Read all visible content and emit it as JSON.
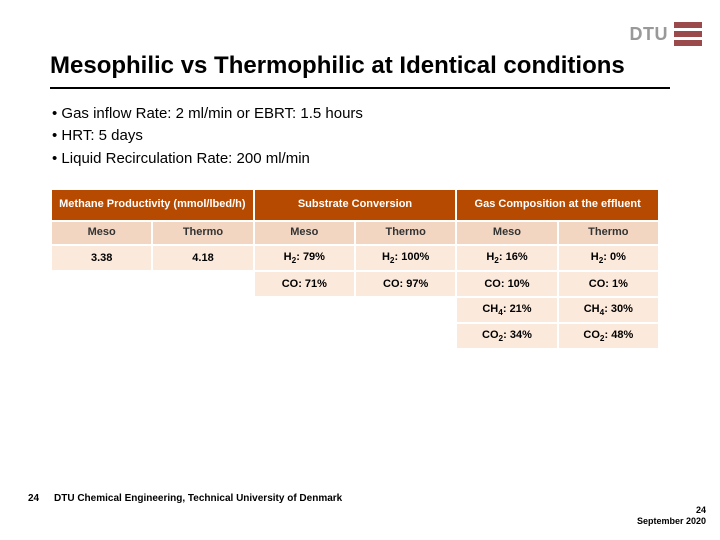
{
  "logo": {
    "text": "DTU"
  },
  "title": "Mesophilic vs Thermophilic at Identical conditions",
  "bullets": [
    "Gas inflow Rate: 2 ml/min or EBRT: 1.5 hours",
    "HRT: 5 days",
    "Liquid Recirculation Rate: 200 ml/min"
  ],
  "table": {
    "header_bg": "#b54a00",
    "header_fg": "#ffffff",
    "subhead_bg": "#f2d6c2",
    "cell_shade_bg": "#fbe9dc",
    "groups": [
      {
        "label": "Methane Productivity (mmol/lbed/h)"
      },
      {
        "label": "Substrate Conversion"
      },
      {
        "label": "Gas Composition at the effluent"
      }
    ],
    "subheads": [
      "Meso",
      "Thermo",
      "Meso",
      "Thermo",
      "Meso",
      "Thermo"
    ],
    "rows": [
      [
        "3.38",
        "4.18",
        "H2: 79%",
        "H2: 100%",
        "H2: 16%",
        "H2: 0%"
      ],
      [
        "",
        "",
        "CO: 71%",
        "CO: 97%",
        "CO: 10%",
        "CO: 1%"
      ],
      [
        "",
        "",
        "",
        "",
        "CH4: 21%",
        "CH4: 30%"
      ],
      [
        "",
        "",
        "",
        "",
        "CO2: 34%",
        "CO2: 48%"
      ]
    ]
  },
  "footer": {
    "page_left": "24",
    "institution": "DTU Chemical Engineering, Technical University of Denmark",
    "page_right": "24",
    "date": "September 2020"
  }
}
